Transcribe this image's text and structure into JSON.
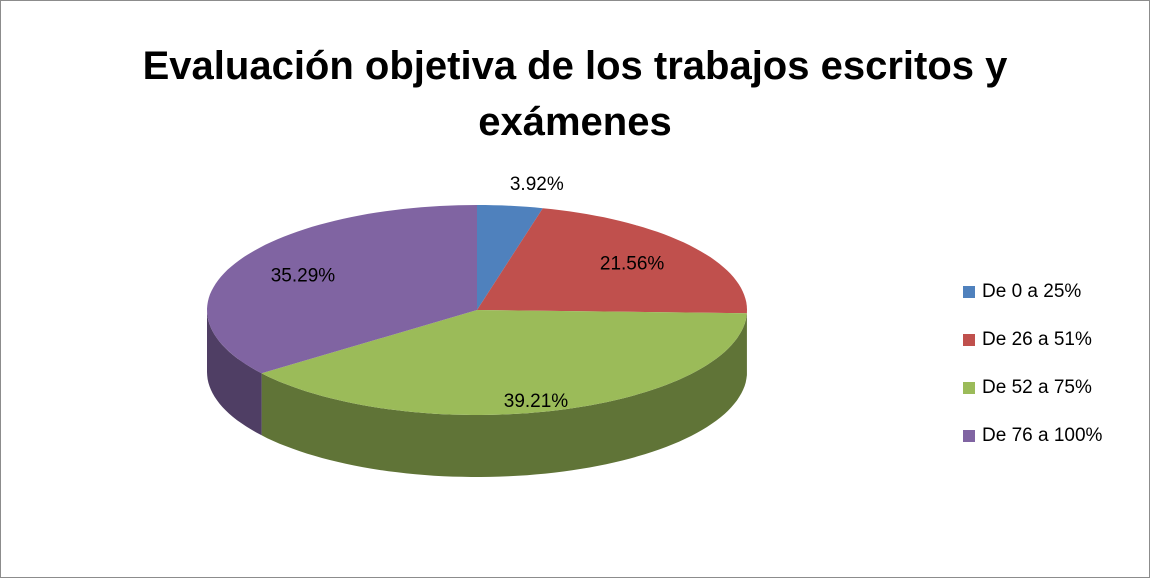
{
  "chart_data": {
    "type": "pie3d",
    "title": "Evaluación objetiva de los trabajos escritos y exámenes",
    "categories": [
      "De 0 a 25%",
      "De 26 a 51%",
      "De 52 a 75%",
      "De 76 a 100%"
    ],
    "values": [
      3.92,
      21.56,
      39.21,
      35.29
    ],
    "value_labels": [
      "3.92%",
      "21.56%",
      "39.21%",
      "35.29%"
    ],
    "colors": [
      "#4f81bd",
      "#c0504d",
      "#9bbb59",
      "#8064a2"
    ],
    "legend": "right"
  }
}
